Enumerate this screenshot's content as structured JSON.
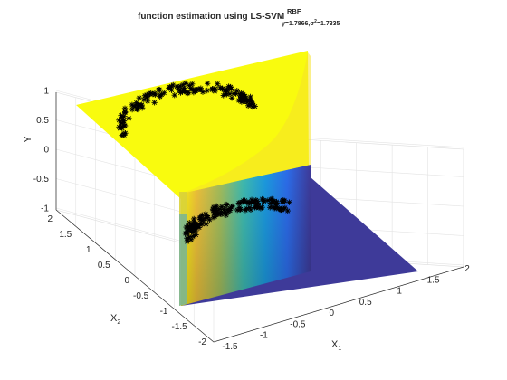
{
  "chart_data": {
    "type": "surface3d",
    "title": {
      "main": "function estimation using LS-SVM",
      "superscript": "RBF",
      "subscript_parts": [
        "γ",
        "=1.7866,",
        "σ",
        "2",
        "=1.7335"
      ]
    },
    "xlabel": {
      "base": "X",
      "sub": "1"
    },
    "ylabel": {
      "base": "X",
      "sub": "2"
    },
    "zlabel": "Y",
    "xlim": [
      -1.5,
      2
    ],
    "ylim": [
      -2,
      2
    ],
    "zlim": [
      -1,
      1
    ],
    "xticks": [
      "-1.5",
      "-1",
      "-0.5",
      "0",
      "0.5",
      "1",
      "1.5",
      "2"
    ],
    "yticks": [
      "-2",
      "-1.5",
      "-1",
      "-0.5",
      "0",
      "0.5",
      "1",
      "1.5",
      "2"
    ],
    "zticks": [
      "-1",
      "-0.5",
      "0",
      "0.5",
      "1"
    ],
    "grid": true,
    "colormap": "parula",
    "surface": {
      "description_values": {
        "upper_plateau": 1,
        "lower_plateau": -1
      },
      "colors": {
        "high": "#f9fb0e",
        "low": "#3e3a99",
        "mid": "#3fbbb0"
      }
    },
    "scatter": {
      "marker": "*",
      "color": "#000000",
      "clusters": [
        {
          "name": "",
          "y_value": 1,
          "shape": "upper arc"
        },
        {
          "name": "",
          "y_value": -1,
          "shape": "lower arc"
        }
      ]
    }
  }
}
